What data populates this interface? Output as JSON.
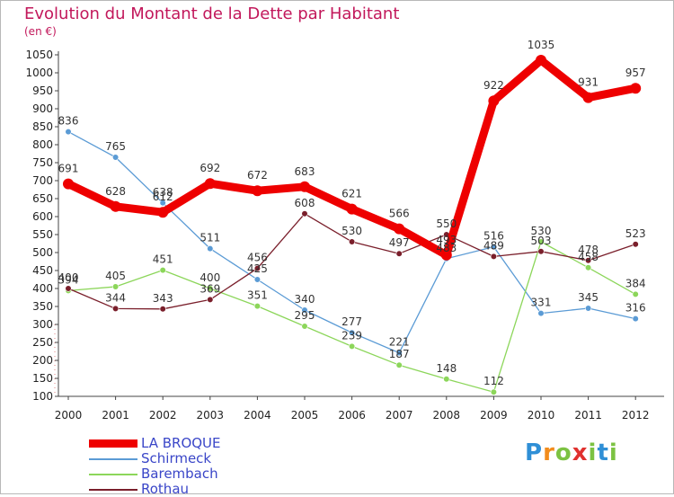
{
  "title": "Evolution du Montant de la Dette par Habitant",
  "subtitle": "(en €)",
  "logo": "Proxiti",
  "chart_data": {
    "type": "line",
    "x": [
      "2000",
      "2001",
      "2002",
      "2003",
      "2004",
      "2005",
      "2006",
      "2007",
      "2008",
      "2009",
      "2010",
      "2011",
      "2012"
    ],
    "ylim": [
      100,
      1050
    ],
    "yticks": [
      100,
      150,
      200,
      250,
      300,
      350,
      400,
      450,
      500,
      550,
      600,
      650,
      700,
      750,
      800,
      850,
      900,
      950,
      1000,
      1050
    ],
    "grid": false,
    "legend_position": "bottom-left",
    "series": [
      {
        "name": "LA BROQUE",
        "color": "#ee0000",
        "values": [
          691,
          628,
          612,
          692,
          672,
          683,
          621,
          566,
          493,
          922,
          1035,
          931,
          957
        ]
      },
      {
        "name": "Schirmeck",
        "color": "#5b9bd5",
        "values": [
          836,
          765,
          638,
          511,
          425,
          340,
          277,
          221,
          483,
          516,
          331,
          345,
          316
        ]
      },
      {
        "name": "Barembach",
        "color": "#8cd65a",
        "values": [
          394,
          405,
          451,
          400,
          351,
          295,
          239,
          187,
          148,
          112,
          530,
          458,
          384
        ]
      },
      {
        "name": "Rothau",
        "color": "#7a1f2b",
        "values": [
          400,
          344,
          343,
          369,
          456,
          608,
          530,
          497,
          550,
          489,
          503,
          478,
          523
        ]
      }
    ]
  }
}
